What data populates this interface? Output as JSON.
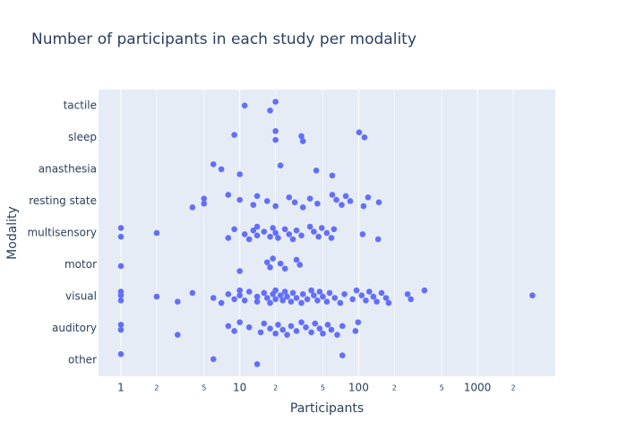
{
  "chart_data": {
    "type": "strip",
    "title": "Number of participants in each study per modality",
    "xlabel": "Participants",
    "ylabel": "Modality",
    "categories": [
      "other",
      "auditory",
      "visual",
      "motor",
      "multisensory",
      "resting state",
      "anasthesia",
      "sleep",
      "tactile"
    ],
    "values": [
      [
        1,
        6,
        14,
        73
      ],
      [
        1,
        1,
        3,
        8,
        9,
        10,
        12,
        15,
        16,
        18,
        20,
        21,
        23,
        25,
        27,
        30,
        33,
        36,
        40,
        43,
        47,
        50,
        55,
        59,
        66,
        73,
        94,
        99
      ],
      [
        1,
        1,
        1,
        2,
        3,
        4,
        6,
        7,
        8,
        9,
        10,
        10,
        11,
        12,
        14,
        14,
        16,
        17,
        18,
        19,
        20,
        20,
        22,
        23,
        24,
        25,
        27,
        28,
        30,
        33,
        34,
        37,
        40,
        42,
        45,
        47,
        50,
        54,
        57,
        63,
        70,
        76,
        89,
        96,
        106,
        115,
        123,
        133,
        142,
        156,
        170,
        179,
        258,
        275,
        358,
        2900
      ],
      [
        1,
        10,
        17,
        18,
        19,
        22,
        24,
        30,
        32
      ],
      [
        1,
        1,
        2,
        8,
        9,
        11,
        12,
        13,
        14,
        14,
        16,
        18,
        19,
        20,
        21,
        24,
        26,
        28,
        30,
        33,
        39,
        42,
        46,
        49,
        54,
        59,
        62,
        108,
        146
      ],
      [
        4,
        5,
        5,
        8,
        10,
        13,
        14,
        17,
        20,
        26,
        29,
        34,
        39,
        45,
        60,
        65,
        72,
        78,
        85,
        110,
        120,
        148
      ],
      [
        6,
        7,
        10,
        22,
        44,
        60
      ],
      [
        9,
        20,
        20,
        33,
        34,
        101,
        112
      ],
      [
        11,
        18,
        20
      ]
    ],
    "color": "#636efa",
    "log_x": true,
    "grid": true,
    "xlim": [
      0.648,
      4520
    ],
    "xticks": [
      1,
      2,
      5,
      10,
      {
        "value": 20,
        "label": "2"
      },
      {
        "value": 50,
        "label": "5"
      },
      100,
      {
        "value": 200,
        "label": "2"
      },
      {
        "value": 500,
        "label": "5"
      },
      1000,
      {
        "value": 2000,
        "label": "2"
      }
    ]
  }
}
